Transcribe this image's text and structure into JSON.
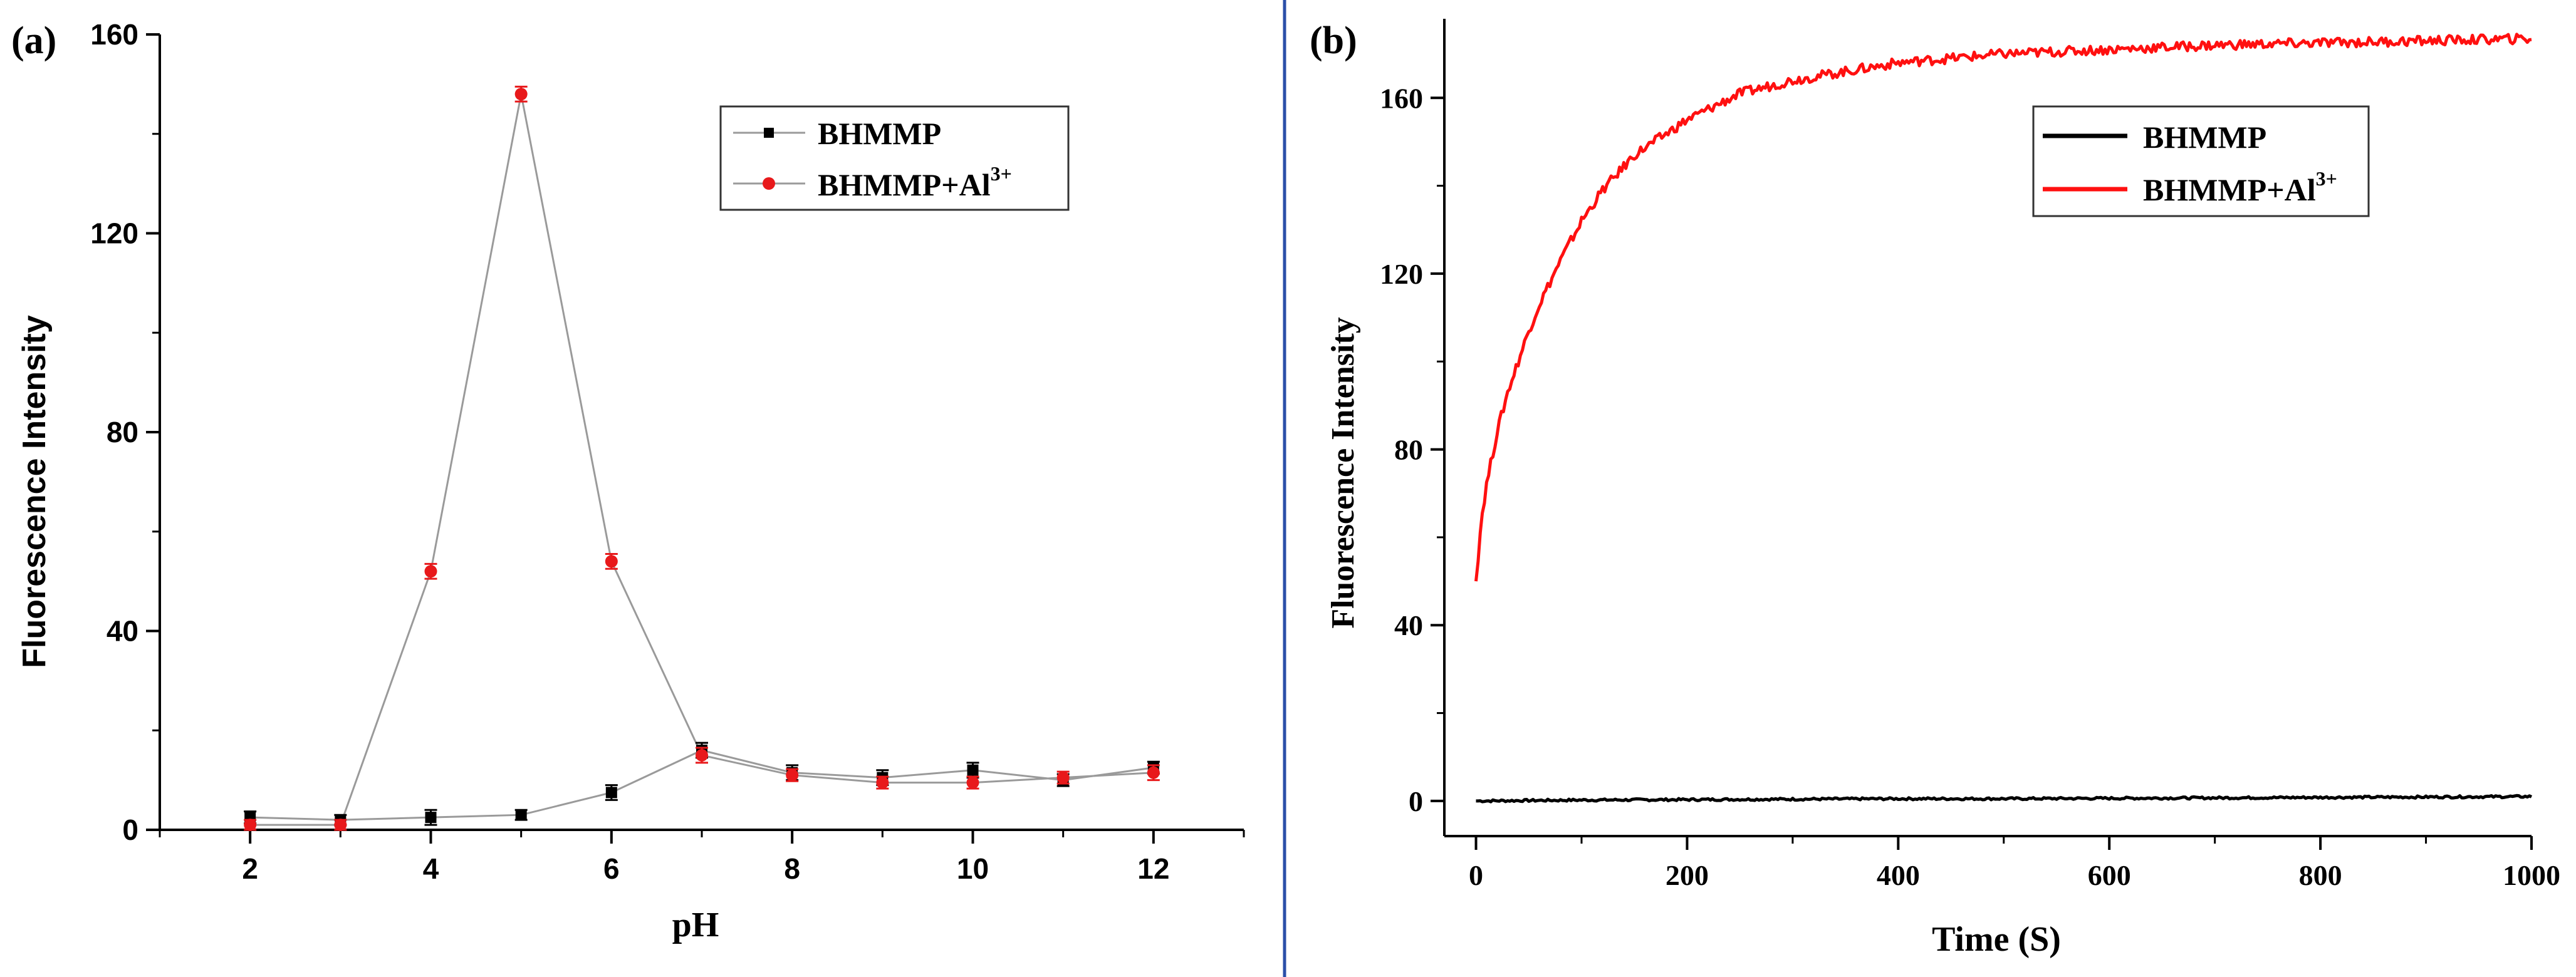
{
  "figure": {
    "divider_color": "#2b4fa8"
  },
  "chart_data": [
    {
      "panel_label": "(a)",
      "type": "line",
      "title": "",
      "xlabel": "pH",
      "ylabel": "Fluorescence Intensity",
      "xlim": [
        1,
        13
      ],
      "ylim": [
        0,
        160
      ],
      "xticks": [
        "2",
        "4",
        "6",
        "8",
        "10",
        "12"
      ],
      "yticks": [
        "0",
        "40",
        "80",
        "120",
        "160"
      ],
      "legend_placement": "top-right",
      "line_color": "#9a9a9a",
      "series": [
        {
          "name": "BHMMP",
          "name_base": "BHMMP",
          "name_sup": "",
          "color": "#000000",
          "marker": "square",
          "x": [
            2,
            3,
            4,
            5,
            6,
            7,
            8,
            9,
            10,
            11,
            12
          ],
          "y": [
            2.5,
            2,
            2.5,
            3,
            7.5,
            16,
            11.5,
            10.5,
            12,
            10,
            12.5
          ],
          "err": [
            1.2,
            1,
            1.5,
            1,
            1.5,
            1.5,
            1.5,
            1.5,
            1.5,
            1.2,
            1.2
          ]
        },
        {
          "name": "BHMMP+Al3+",
          "name_base": "BHMMP+Al",
          "name_sup": "3+",
          "color": "#e8191b",
          "marker": "circle",
          "x": [
            2,
            3,
            4,
            5,
            6,
            7,
            8,
            9,
            10,
            11,
            12
          ],
          "y": [
            1,
            1,
            52,
            148,
            54,
            15,
            11,
            9.5,
            9.5,
            10.5,
            11.5
          ],
          "err": [
            1,
            1,
            1.5,
            1.5,
            1.5,
            1.5,
            1.2,
            1.2,
            1.2,
            1.2,
            1.5
          ]
        }
      ]
    },
    {
      "panel_label": "(b)",
      "type": "line",
      "title": "",
      "xlabel": "Time (S)",
      "ylabel": "Fluorescence Intensity",
      "xlim": [
        -30,
        1000
      ],
      "ylim": [
        -8,
        178
      ],
      "xticks": [
        "0",
        "200",
        "400",
        "600",
        "800",
        "1000"
      ],
      "yticks": [
        "0",
        "40",
        "80",
        "120",
        "160"
      ],
      "legend_placement": "top-right",
      "series": [
        {
          "name": "BHMMP",
          "name_base": "BHMMP",
          "name_sup": "",
          "color": "#000000",
          "x": [
            0,
            100,
            200,
            300,
            400,
            500,
            600,
            700,
            800,
            900,
            1000
          ],
          "y": [
            0,
            0.2,
            0.3,
            0.4,
            0.5,
            0.5,
            0.6,
            0.7,
            0.8,
            0.9,
            1.0
          ]
        },
        {
          "name": "BHMMP+Al3+",
          "name_base": "BHMMP+Al",
          "name_sup": "3+",
          "color": "#ff1010",
          "x": [
            0,
            5,
            10,
            20,
            30,
            40,
            50,
            60,
            80,
            100,
            120,
            150,
            200,
            250,
            300,
            350,
            400,
            450,
            500,
            600,
            700,
            800,
            900,
            1000
          ],
          "y": [
            50,
            64,
            72,
            84,
            93,
            100,
            107,
            113,
            123,
            132,
            139,
            147,
            155,
            161,
            164,
            166,
            168,
            169,
            170,
            171,
            172,
            172.5,
            173,
            173.5
          ]
        }
      ]
    }
  ]
}
